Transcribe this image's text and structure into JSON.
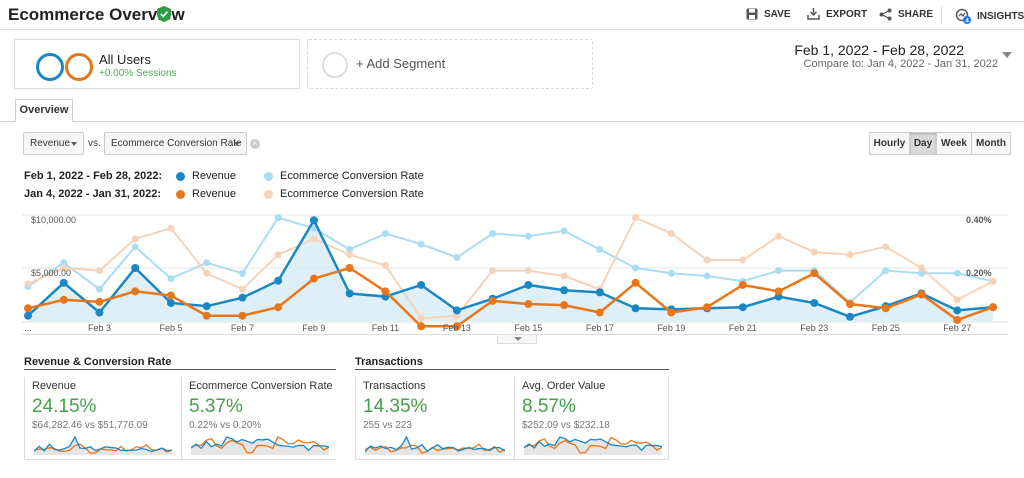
{
  "header": {
    "title": "Ecommerce Overview",
    "save_label": "SAVE",
    "export_label": "EXPORT",
    "share_label": "SHARE",
    "insights_label": "INSIGHTS",
    "insights_badge": "4"
  },
  "segments": {
    "all_users_name": "All Users",
    "all_users_sub": "+0.00% Sessions",
    "add_segment_label": "+ Add Segment"
  },
  "date_range": {
    "main": "Feb 1, 2022 - Feb 28, 2022",
    "compare": "Compare to: Jan 4, 2022 - Jan 31, 2022"
  },
  "tabs": {
    "overview": "Overview"
  },
  "controls": {
    "metric1": "Revenue",
    "vs_label": "vs.",
    "metric2": "Ecommerce Conversion Rate",
    "granularity": [
      "Hourly",
      "Day",
      "Week",
      "Month"
    ],
    "granularity_selected": "Day"
  },
  "legend": {
    "row1_range": "Feb 1, 2022 - Feb 28, 2022:",
    "row2_range": "Jan 4, 2022 - Jan 31, 2022:",
    "revenue": "Revenue",
    "conv_rate": "Ecommerce Conversion Rate"
  },
  "colors": {
    "revenue_current": "#1a87c5",
    "revenue_previous": "#e8761a",
    "conv_current": "#aadcf2",
    "conv_previous": "#f5d3b9",
    "area_fill": "#d4e9f5",
    "positive": "#43a047"
  },
  "chart_data": {
    "type": "line",
    "x_ticks": [
      "...",
      "Feb 3",
      "Feb 5",
      "Feb 7",
      "Feb 9",
      "Feb 11",
      "Feb 13",
      "Feb 15",
      "Feb 17",
      "Feb 19",
      "Feb 21",
      "Feb 23",
      "Feb 25",
      "Feb 27"
    ],
    "y_left_ticks": [
      "$10,000.00",
      "$5,000.00"
    ],
    "y_right_ticks": [
      "0.40%",
      "0.20%"
    ],
    "y_left_range": [
      0,
      10000
    ],
    "y_right_range": [
      0,
      0.4
    ],
    "days": [
      1,
      2,
      3,
      4,
      5,
      6,
      7,
      8,
      9,
      10,
      11,
      12,
      13,
      14,
      15,
      16,
      17,
      18,
      19,
      20,
      21,
      22,
      23,
      24,
      25,
      26,
      27,
      28
    ],
    "series": [
      {
        "name": "Revenue",
        "period": "Feb 1, 2022 - Feb 28, 2022",
        "axis": "left",
        "values": [
          500,
          3600,
          800,
          5000,
          1700,
          1400,
          2200,
          3800,
          9500,
          2600,
          2300,
          3400,
          1000,
          2100,
          3400,
          2900,
          2700,
          1200,
          1100,
          1200,
          1300,
          2300,
          1700,
          400,
          1400,
          2600,
          1000,
          1300
        ]
      },
      {
        "name": "Ecommerce Conversion Rate",
        "period": "Feb 1, 2022 - Feb 28, 2022",
        "axis": "right",
        "values": [
          0.13,
          0.22,
          0.12,
          0.28,
          0.16,
          0.22,
          0.18,
          0.39,
          0.35,
          0.27,
          0.33,
          0.29,
          0.24,
          0.33,
          0.32,
          0.34,
          0.27,
          0.2,
          0.18,
          0.17,
          0.15,
          0.19,
          0.19,
          0.07,
          0.19,
          0.18,
          0.18,
          0.15
        ]
      },
      {
        "name": "Revenue",
        "period": "Jan 4, 2022 - Jan 31, 2022",
        "axis": "left",
        "values": [
          1200,
          2000,
          1800,
          2800,
          2400,
          500,
          500,
          1300,
          4000,
          5000,
          2800,
          -500,
          -500,
          1900,
          1600,
          1500,
          800,
          3600,
          800,
          1300,
          3400,
          2800,
          4500,
          1600,
          1200,
          2500,
          100,
          1300
        ]
      },
      {
        "name": "Ecommerce Conversion Rate",
        "period": "Jan 4, 2022 - Jan 31, 2022",
        "axis": "right",
        "values": [
          0.14,
          0.2,
          0.19,
          0.31,
          0.35,
          0.18,
          0.12,
          0.25,
          0.31,
          0.25,
          0.21,
          0.01,
          0.02,
          0.19,
          0.19,
          0.17,
          0.12,
          0.39,
          0.33,
          0.23,
          0.23,
          0.32,
          0.26,
          0.25,
          0.28,
          0.2,
          0.08,
          0.15
        ]
      }
    ]
  },
  "panels": {
    "group1_title": "Revenue & Conversion Rate",
    "group2_title": "Transactions",
    "cards": [
      {
        "name": "Revenue",
        "value": "24.15%",
        "compare": "$64,282.46 vs $51,776.09"
      },
      {
        "name": "Ecommerce Conversion Rate",
        "value": "5.37%",
        "compare": "0.22% vs 0.20%"
      },
      {
        "name": "Transactions",
        "value": "14.35%",
        "compare": "255 vs 223"
      },
      {
        "name": "Avg. Order Value",
        "value": "8.57%",
        "compare": "$252.09 vs $232.18"
      }
    ]
  }
}
